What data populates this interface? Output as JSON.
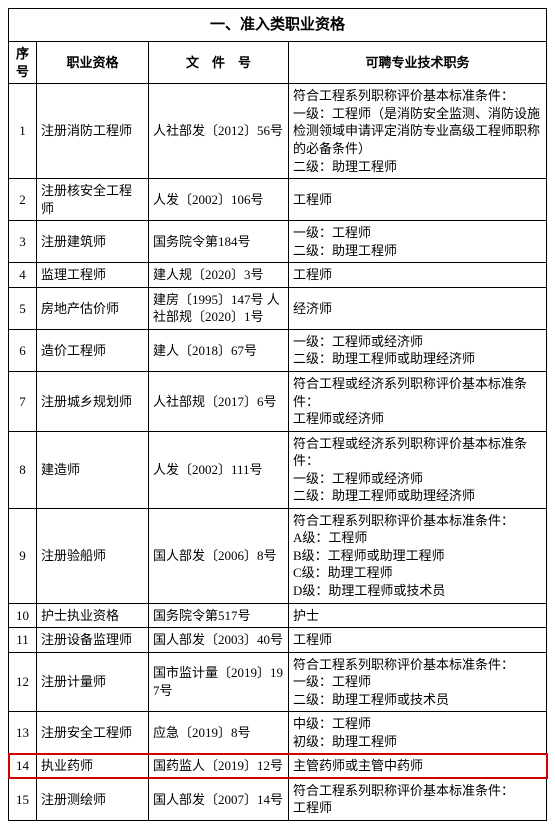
{
  "title": "一、准入类职业资格",
  "headers": {
    "idx": "序号",
    "name": "职业资格",
    "doc": "文　件　号",
    "job": "可聘专业技术职务"
  },
  "rows": [
    {
      "idx": "1",
      "name": "注册消防工程师",
      "doc": "人社部发〔2012〕56号",
      "job": "符合工程系列职称评价基本标准条件：\n一级：工程师（是消防安全监测、消防设施检测领域申请评定消防专业高级工程师职称的必备条件）\n二级：助理工程师"
    },
    {
      "idx": "2",
      "name": "注册核安全工程师",
      "doc": "人发〔2002〕106号",
      "job": "工程师"
    },
    {
      "idx": "3",
      "name": "注册建筑师",
      "doc": "国务院令第184号",
      "job": "一级：工程师\n二级：助理工程师"
    },
    {
      "idx": "4",
      "name": "监理工程师",
      "doc": "建人规〔2020〕3号",
      "job": "工程师"
    },
    {
      "idx": "5",
      "name": "房地产估价师",
      "doc": "建房〔1995〕147号\n人社部规〔2020〕1号",
      "job": "经济师"
    },
    {
      "idx": "6",
      "name": "造价工程师",
      "doc": "建人〔2018〕67号",
      "job": "一级：工程师或经济师\n二级：助理工程师或助理经济师"
    },
    {
      "idx": "7",
      "name": "注册城乡规划师",
      "doc": "人社部规〔2017〕6号",
      "job": "符合工程或经济系列职称评价基本标准条件：\n工程师或经济师"
    },
    {
      "idx": "8",
      "name": "建造师",
      "doc": "人发〔2002〕111号",
      "job": "符合工程或经济系列职称评价基本标准条件：\n一级：工程师或经济师\n二级：助理工程师或助理经济师"
    },
    {
      "idx": "9",
      "name": "注册验船师",
      "doc": "国人部发〔2006〕8号",
      "job": "符合工程系列职称评价基本标准条件：\nA级：工程师\nB级：工程师或助理工程师\nC级：助理工程师\nD级：助理工程师或技术员"
    },
    {
      "idx": "10",
      "name": "护士执业资格",
      "doc": "国务院令第517号",
      "job": "护士"
    },
    {
      "idx": "11",
      "name": "注册设备监理师",
      "doc": "国人部发〔2003〕40号",
      "job": "工程师"
    },
    {
      "idx": "12",
      "name": "注册计量师",
      "doc": "国市监计量〔2019〕197号",
      "job": "符合工程系列职称评价基本标准条件：\n一级：工程师\n二级：助理工程师或技术员"
    },
    {
      "idx": "13",
      "name": "注册安全工程师",
      "doc": "应急〔2019〕8号",
      "job": "中级：工程师\n初级：助理工程师"
    },
    {
      "idx": "14",
      "name": "执业药师",
      "doc": "国药监人〔2019〕12号",
      "job": "主管药师或主管中药师",
      "hl": true
    },
    {
      "idx": "15",
      "name": "注册测绘师",
      "doc": "国人部发〔2007〕14号",
      "job": "符合工程系列职称评价基本标准条件：\n工程师"
    }
  ],
  "highlight_color": "#d40000"
}
